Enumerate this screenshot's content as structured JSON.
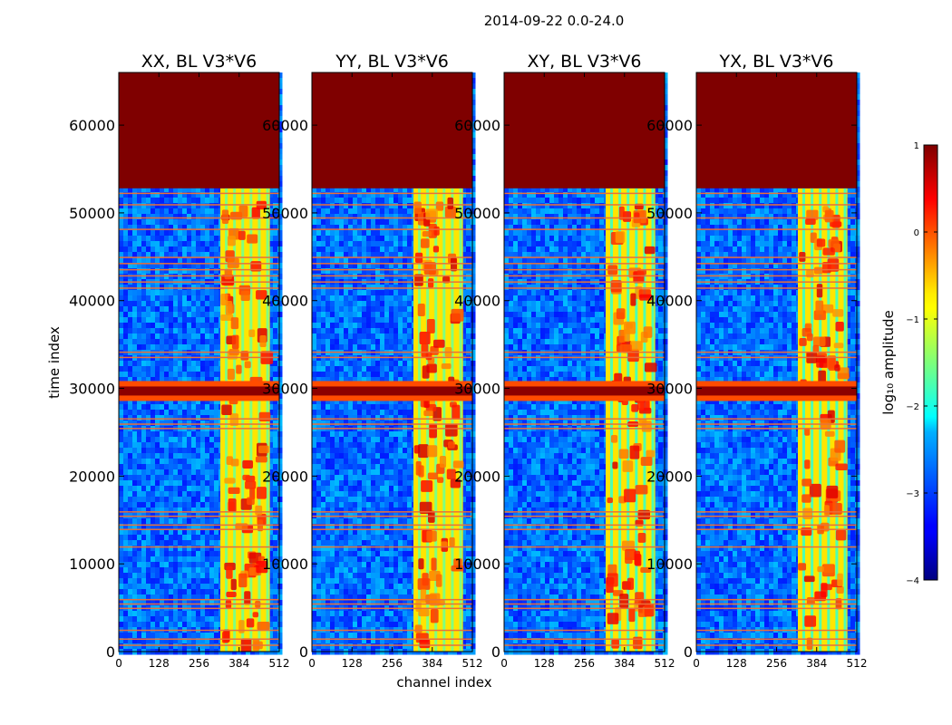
{
  "figure_title": "2014-09-22 0.0-24.0",
  "chart_data": {
    "type": "heatmap",
    "xlabel": "channel index",
    "ylabel": "time index",
    "xlim": [
      0,
      512
    ],
    "ylim": [
      0,
      66000
    ],
    "xticks": [
      0,
      128,
      256,
      384,
      512
    ],
    "yticks": [
      0,
      10000,
      20000,
      30000,
      40000,
      50000,
      60000
    ],
    "panels": [
      {
        "title": "XX, BL V3*V6",
        "band": [
          324,
          482
        ],
        "xy": false
      },
      {
        "title": "YY, BL V3*V6",
        "band": [
          324,
          482
        ],
        "xy": false
      },
      {
        "title": "XY, BL V3*V6",
        "band": [
          324,
          482
        ],
        "xy": true
      },
      {
        "title": "YX, BL V3*V6",
        "band": [
          324,
          482
        ],
        "xy": true
      }
    ],
    "saturated_above": 52800,
    "strong_rfi_rows": [
      29700
    ],
    "flagged_rows": [
      52300,
      51000,
      49500,
      48200,
      45000,
      44300,
      43600,
      42900,
      42200,
      41500,
      34200,
      33600,
      26600,
      26000,
      25500,
      16000,
      15500,
      14500,
      14000,
      12000,
      6000,
      5500,
      5000,
      2500,
      1500,
      800
    ],
    "colorbar": {
      "label": "log₁₀ amplitude",
      "ticks": [
        "1",
        "0",
        "−1",
        "−2",
        "−3",
        "−4"
      ],
      "range": [
        -4,
        1
      ],
      "colormap": "jet"
    }
  }
}
